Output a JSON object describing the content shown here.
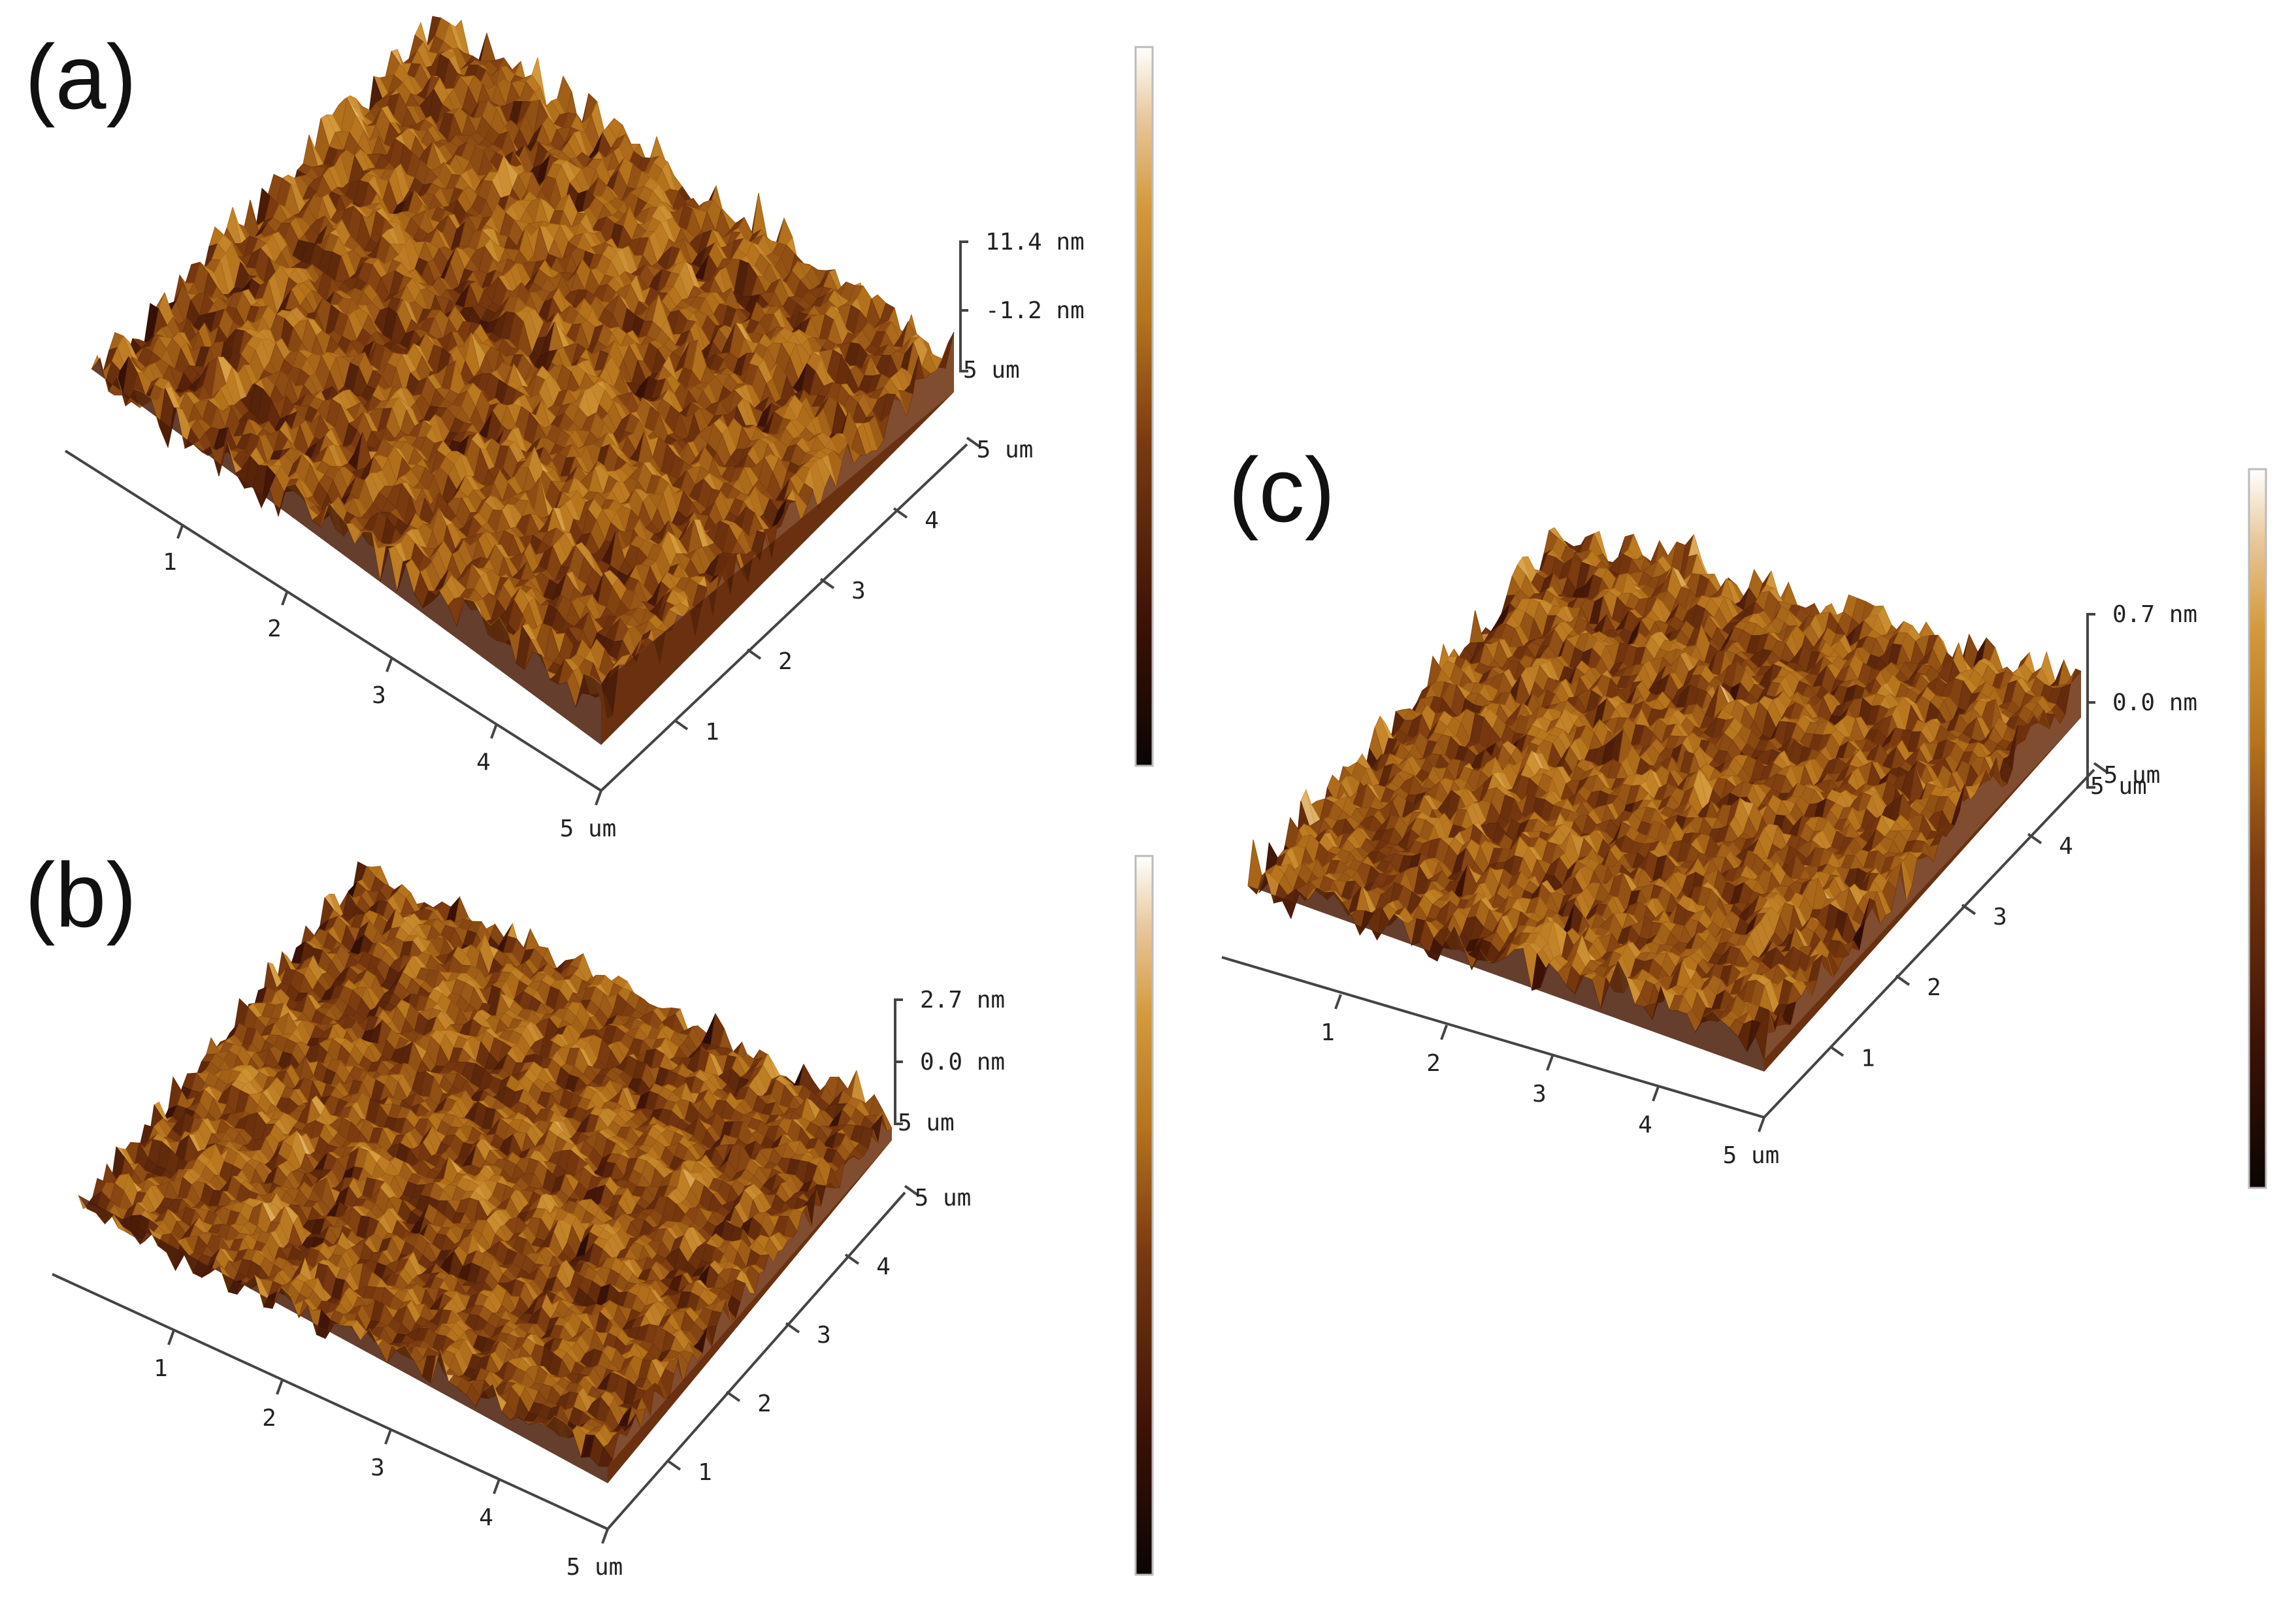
{
  "colors": {
    "colormap": [
      "#0a0503",
      "#3c1206",
      "#7a3a0f",
      "#b5731c",
      "#d49a3c",
      "#e8c79a",
      "#ffffff"
    ]
  },
  "panels": [
    {
      "id": "a",
      "label": "(a)",
      "x_ticks": [
        "1",
        "2",
        "3",
        "4",
        "5 um"
      ],
      "y_ticks": [
        "1",
        "2",
        "3",
        "4",
        "5 um"
      ],
      "z_top": "11.4 nm",
      "z_mid": "-1.2 nm",
      "z_base": "5 um",
      "roughness": 1.0,
      "seed": 11
    },
    {
      "id": "b",
      "label": "(b)",
      "x_ticks": [
        "1",
        "2",
        "3",
        "4",
        "5 um"
      ],
      "y_ticks": [
        "1",
        "2",
        "3",
        "4",
        "5 um"
      ],
      "z_top": "2.7 nm",
      "z_mid": "0.0 nm",
      "z_base": "5 um",
      "roughness": 0.8,
      "seed": 23
    },
    {
      "id": "c",
      "label": "(c)",
      "x_ticks": [
        "1",
        "2",
        "3",
        "4",
        "5 um"
      ],
      "y_ticks": [
        "1",
        "2",
        "3",
        "4",
        "5 um"
      ],
      "z_top": "0.7 nm",
      "z_mid": "0.0 nm",
      "z_base": "5 um",
      "roughness": 0.9,
      "seed": 37
    }
  ]
}
